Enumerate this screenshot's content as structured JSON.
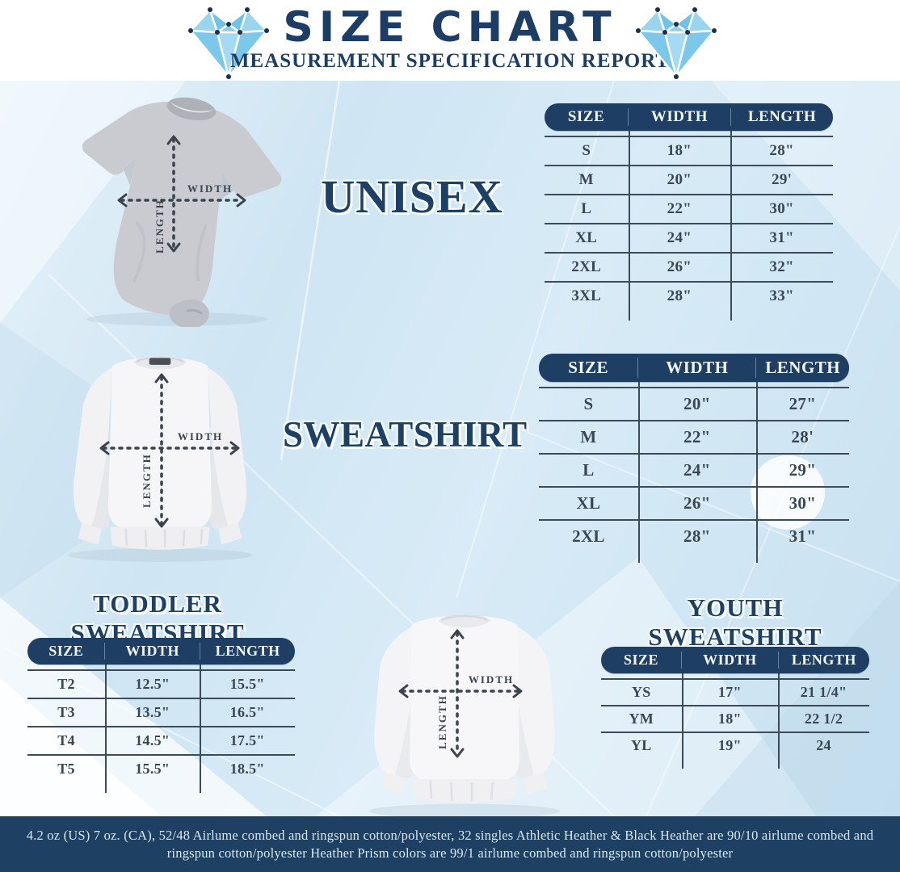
{
  "header": {
    "title": "SIZE CHART",
    "subtitle": "MEASUREMENT SPECIFICATION REPORT"
  },
  "measurement_diagram": {
    "width_label": "WIDTH",
    "length_label": "LENGTH"
  },
  "sections": {
    "unisex": {
      "label": "UNISEX",
      "table": {
        "headers": [
          "SIZE",
          "WIDTH",
          "LENGTH"
        ],
        "rows": [
          [
            "S",
            "18\"",
            "28\""
          ],
          [
            "M",
            "20\"",
            "29'"
          ],
          [
            "L",
            "22\"",
            "30\""
          ],
          [
            "XL",
            "24\"",
            "31\""
          ],
          [
            "2XL",
            "26\"",
            "32\""
          ],
          [
            "3XL",
            "28\"",
            "33\""
          ]
        ]
      }
    },
    "sweatshirt": {
      "label": "SWEATSHIRT",
      "table": {
        "headers": [
          "SIZE",
          "WIDTH",
          "LENGTH"
        ],
        "rows": [
          [
            "S",
            "20\"",
            "27\""
          ],
          [
            "M",
            "22\"",
            "28'"
          ],
          [
            "L",
            "24\"",
            "29\""
          ],
          [
            "XL",
            "26\"",
            "30\""
          ],
          [
            "2XL",
            "28\"",
            "31\""
          ]
        ]
      }
    },
    "toddler": {
      "label": "TODDLER SWEATSHIRT",
      "table": {
        "headers": [
          "SIZE",
          "WIDTH",
          "LENGTH"
        ],
        "rows": [
          [
            "T2",
            "12.5\"",
            "15.5\""
          ],
          [
            "T3",
            "13.5\"",
            "16.5\""
          ],
          [
            "T4",
            "14.5\"",
            "17.5\""
          ],
          [
            "T5",
            "15.5\"",
            "18.5\""
          ]
        ]
      }
    },
    "youth": {
      "label": "YOUTH SWEATSHIRT",
      "table": {
        "headers": [
          "SIZE",
          "WIDTH",
          "LENGTH"
        ],
        "rows": [
          [
            "YS",
            "17\"",
            "21 1/4\""
          ],
          [
            "YM",
            "18\"",
            "22 1/2"
          ],
          [
            "YL",
            "19\"",
            "24"
          ]
        ]
      }
    }
  },
  "footer": {
    "lines": [
      "4.2 oz (US) 7 oz. (CA), 52/48 Airlume combed and ringspun cotton/polyester, 32 singles Athletic Heather & Black Heather are 90/10 airlume combed and",
      "ringspun cotton/polyester Heather Prism colors are 99/1 airlume combed and ringspun cotton/polyester"
    ]
  },
  "colors": {
    "navy": "#1e3f63",
    "table_line": "#3c4b59",
    "cell_text": "#3a4653",
    "background_blue": "#cfe5f3",
    "diamond_blue": "#7cc8ea",
    "footer_bg": "#1e4062",
    "footer_text": "#d9e6f2"
  }
}
